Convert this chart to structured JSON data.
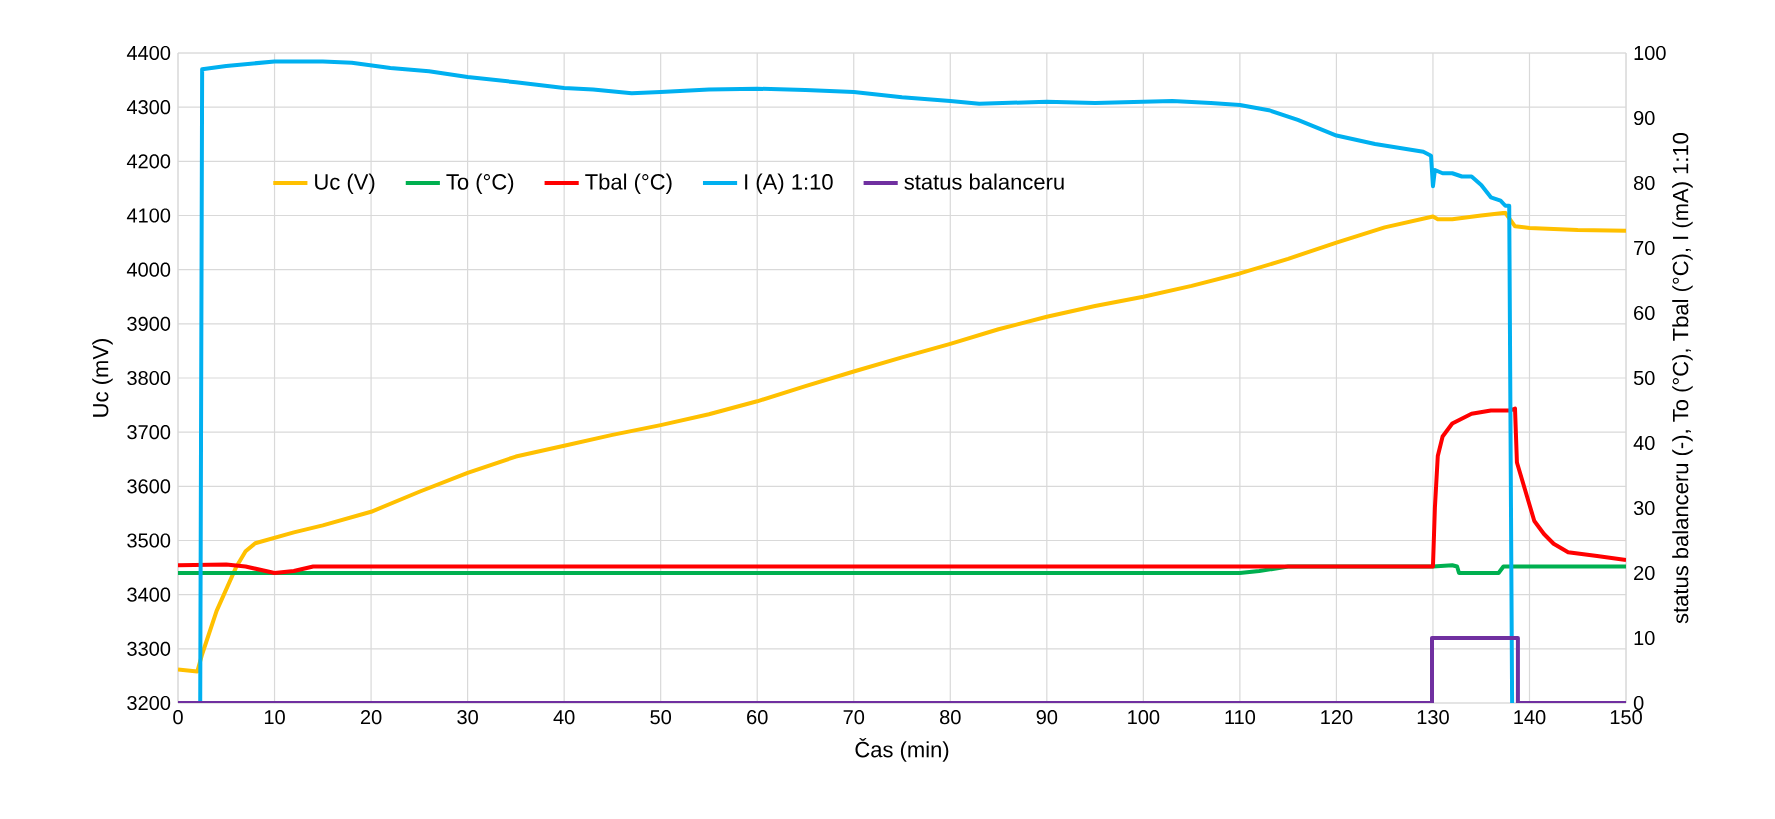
{
  "chart_data": {
    "type": "line",
    "xlabel": "Čas (min)",
    "ylabel": "Uc (mV)",
    "y2label": "status balanceru (-), To (°C), Tbal (°C), I (mA) 1:10",
    "xlim": [
      0,
      150
    ],
    "xticks": [
      0,
      10,
      20,
      30,
      40,
      50,
      60,
      70,
      80,
      90,
      100,
      110,
      120,
      130,
      140,
      150
    ],
    "ylim": [
      3200,
      4400
    ],
    "yticks": [
      3200,
      3300,
      3400,
      3500,
      3600,
      3700,
      3800,
      3900,
      4000,
      4100,
      4200,
      4300,
      4400
    ],
    "y2lim": [
      0,
      100
    ],
    "y2ticks": [
      0,
      10,
      20,
      30,
      40,
      50,
      60,
      70,
      80,
      90,
      100
    ],
    "grid": true,
    "legend": "top left",
    "line_style": "solid",
    "marker": "none",
    "series": [
      {
        "name": "Uc (V)",
        "color": "#ffc000",
        "axis": "y",
        "x": [
          0,
          2,
          2.5,
          4,
          6,
          7,
          8,
          10,
          12,
          15,
          20,
          25,
          30,
          35,
          40,
          45,
          50,
          55,
          60,
          65,
          70,
          75,
          80,
          85,
          90,
          95,
          100,
          105,
          110,
          115,
          120,
          125,
          130,
          130.5,
          132,
          135,
          137.5,
          138.5,
          140,
          145,
          150
        ],
        "values": [
          3262,
          3258,
          3290,
          3370,
          3450,
          3480,
          3495,
          3505,
          3515,
          3528,
          3553,
          3590,
          3625,
          3655,
          3675,
          3695,
          3713,
          3733,
          3757,
          3785,
          3812,
          3838,
          3863,
          3890,
          3913,
          3933,
          3950,
          3970,
          3993,
          4020,
          4050,
          4078,
          4098,
          4093,
          4093,
          4100,
          4105,
          4080,
          4077,
          4073,
          4072
        ]
      },
      {
        "name": "To (°C)",
        "color": "#00b050",
        "axis": "y2",
        "x": [
          0,
          108,
          110,
          112,
          115,
          130,
          132,
          132.5,
          132.7,
          136.8,
          137.3,
          150
        ],
        "values": [
          20,
          20,
          20,
          20.3,
          21,
          21,
          21.2,
          21,
          20,
          20,
          21,
          21
        ]
      },
      {
        "name": "Tbal (°C)",
        "color": "#ff0000",
        "axis": "y2",
        "x": [
          0,
          5,
          7,
          10,
          12,
          14,
          130,
          130.2,
          130.5,
          131,
          132,
          134,
          136,
          138,
          138.5,
          138.7,
          139.5,
          140.5,
          141.5,
          142.5,
          144,
          147,
          150
        ],
        "values": [
          21.2,
          21.3,
          21,
          20,
          20.3,
          21,
          21,
          30,
          38,
          41,
          43,
          44.5,
          45,
          45,
          45.3,
          37,
          33,
          28,
          26,
          24.5,
          23.2,
          22.6,
          22
        ]
      },
      {
        "name": "I (A) 1:10",
        "color": "#00b0f0",
        "axis": "y2",
        "x": [
          2.3,
          2.5,
          5,
          10,
          15,
          18,
          22,
          26,
          30,
          35,
          40,
          43,
          47,
          50,
          55,
          60,
          65,
          70,
          75,
          80,
          83,
          90,
          95,
          100,
          103,
          107,
          110,
          113,
          116,
          120,
          124,
          129,
          129.8,
          130,
          130.2,
          131,
          132,
          133,
          134,
          135,
          136,
          137,
          137.5,
          137.9,
          138.2
        ],
        "values": [
          0,
          97.5,
          98,
          98.7,
          98.7,
          98.5,
          97.7,
          97.2,
          96.3,
          95.5,
          94.6,
          94.4,
          93.8,
          94,
          94.4,
          94.5,
          94.3,
          94,
          93.2,
          92.6,
          92.2,
          92.5,
          92.3,
          92.5,
          92.6,
          92.3,
          92,
          91.2,
          89.7,
          87.3,
          86,
          84.8,
          84.2,
          79.5,
          82,
          81.5,
          81.5,
          81,
          81,
          79.7,
          77.8,
          77.3,
          76.5,
          76.5,
          0
        ]
      },
      {
        "name": "status balanceru",
        "color": "#7030a0",
        "axis": "y2",
        "x": [
          0,
          129.9,
          129.9,
          138.8,
          138.8,
          150
        ],
        "values": [
          0,
          0,
          10,
          10,
          0,
          0
        ]
      }
    ]
  }
}
